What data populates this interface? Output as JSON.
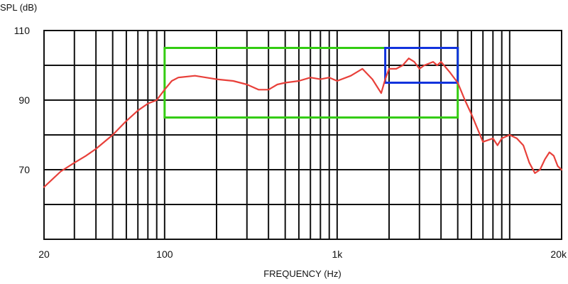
{
  "chart_data": {
    "type": "line",
    "title": "",
    "xlabel": "FREQUENCY (Hz)",
    "ylabel": "SPL (dB)",
    "x_scale": "log",
    "xlim": [
      20,
      20000
    ],
    "ylim": [
      50,
      110
    ],
    "grid": true,
    "x_tick_values": [
      20,
      100,
      1000,
      20000
    ],
    "x_tick_labels": [
      "20",
      "100",
      "1k",
      "20k"
    ],
    "y_tick_values": [
      110,
      90,
      70
    ],
    "y_tick_labels": [
      "110",
      "90",
      "70"
    ],
    "grid_x": [
      20,
      30,
      40,
      50,
      60,
      70,
      80,
      90,
      100,
      200,
      300,
      400,
      500,
      600,
      700,
      800,
      900,
      1000,
      2000,
      3000,
      4000,
      5000,
      6000,
      7000,
      8000,
      9000,
      10000,
      20000
    ],
    "grid_y": [
      50,
      60,
      70,
      80,
      90,
      100,
      110
    ],
    "series": [
      {
        "color": "#e8403a",
        "x": [
          20,
          25,
          30,
          35,
          40,
          50,
          60,
          70,
          80,
          90,
          100,
          110,
          120,
          150,
          200,
          250,
          300,
          350,
          400,
          450,
          500,
          600,
          700,
          800,
          900,
          1000,
          1200,
          1400,
          1600,
          1800,
          1900,
          2000,
          2200,
          2400,
          2600,
          2800,
          3000,
          3200,
          3400,
          3600,
          3800,
          4000,
          4500,
          5000,
          5500,
          6000,
          7000,
          8000,
          8500,
          9000,
          10000,
          11000,
          12000,
          13000,
          14000,
          15000,
          16000,
          17000,
          18000,
          19000,
          20000
        ],
        "y": [
          65,
          69.5,
          72,
          74,
          76,
          80,
          84,
          87,
          89,
          90,
          93,
          95.5,
          96.5,
          97,
          96,
          95.5,
          94.5,
          93,
          93,
          94.5,
          95,
          95.5,
          96.5,
          96,
          96.5,
          95.5,
          97,
          99,
          96,
          92,
          96,
          99,
          99,
          100,
          102,
          101,
          99,
          100,
          100.5,
          101,
          100,
          101,
          98,
          95,
          90,
          86,
          78,
          79,
          77,
          79,
          80,
          79,
          77,
          72,
          69,
          70,
          73,
          75,
          74,
          71,
          70
        ]
      }
    ],
    "highlight_boxes": [
      {
        "color": "#33cc11",
        "x_range": [
          100,
          5000
        ],
        "y_range": [
          85,
          105
        ]
      },
      {
        "color": "#1133dd",
        "x_range": [
          1900,
          5000
        ],
        "y_range": [
          95,
          105
        ]
      }
    ]
  }
}
